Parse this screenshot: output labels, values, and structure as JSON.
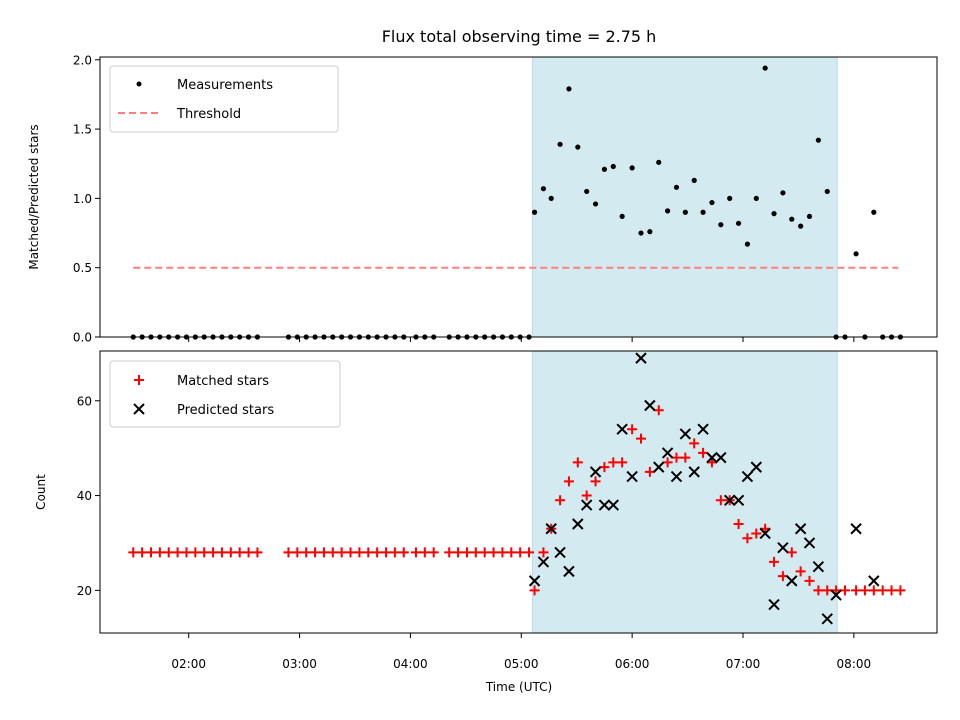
{
  "chart_data": {
    "type": "scatter",
    "title": "Flux total observing time = 2.75 h",
    "xlabel": "Time (UTC)",
    "xlim": [
      1.2,
      8.75
    ],
    "xticks": [
      {
        "value": 2,
        "label": "02:00"
      },
      {
        "value": 3,
        "label": "03:00"
      },
      {
        "value": 4,
        "label": "04:00"
      },
      {
        "value": 5,
        "label": "05:00"
      },
      {
        "value": 6,
        "label": "06:00"
      },
      {
        "value": 7,
        "label": "07:00"
      },
      {
        "value": 8,
        "label": "08:00"
      }
    ],
    "shaded_span": {
      "x0": 5.1,
      "x1": 7.85,
      "color": "#d2eaf0"
    },
    "colors": {
      "measure": "#000000",
      "threshold": "#ff7f7f",
      "matched": "#ff0000",
      "predicted": "#000000",
      "span": "#d2eaf0"
    },
    "top": {
      "ylabel": "Matched/Predicted stars",
      "ylim": [
        0,
        2.02
      ],
      "yticks": [
        "0.0",
        "0.5",
        "1.0",
        "1.5",
        "2.0"
      ],
      "legend": {
        "position": "upper-left",
        "entries": [
          "Measurements",
          "Threshold"
        ]
      },
      "threshold": {
        "x": [
          1.5,
          8.4
        ],
        "y": 0.5
      },
      "measurements": {
        "x": [
          1.5,
          1.58,
          1.66,
          1.74,
          1.82,
          1.9,
          1.98,
          2.06,
          2.14,
          2.22,
          2.3,
          2.38,
          2.46,
          2.54,
          2.62,
          2.9,
          2.98,
          3.06,
          3.14,
          3.22,
          3.3,
          3.38,
          3.46,
          3.54,
          3.62,
          3.7,
          3.78,
          3.86,
          3.94,
          4.05,
          4.13,
          4.21,
          4.35,
          4.43,
          4.51,
          4.59,
          4.67,
          4.75,
          4.83,
          4.91,
          4.99,
          5.07,
          5.12,
          5.2,
          5.27,
          5.35,
          5.43,
          5.51,
          5.59,
          5.67,
          5.75,
          5.83,
          5.91,
          6.0,
          6.08,
          6.16,
          6.24,
          6.32,
          6.4,
          6.48,
          6.56,
          6.64,
          6.72,
          6.8,
          6.88,
          6.96,
          7.04,
          7.12,
          7.2,
          7.28,
          7.36,
          7.44,
          7.52,
          7.6,
          7.68,
          7.76,
          7.84,
          7.92,
          8.02,
          8.1,
          8.18,
          8.26,
          8.34,
          8.42
        ],
        "y": [
          0,
          0,
          0,
          0,
          0,
          0,
          0,
          0,
          0,
          0,
          0,
          0,
          0,
          0,
          0,
          0,
          0,
          0,
          0,
          0,
          0,
          0,
          0,
          0,
          0,
          0,
          0,
          0,
          0,
          0,
          0,
          0,
          0,
          0,
          0,
          0,
          0,
          0,
          0,
          0,
          0,
          0,
          0.9,
          1.07,
          1.0,
          1.39,
          1.79,
          1.37,
          1.05,
          0.96,
          1.21,
          1.23,
          0.87,
          1.22,
          0.75,
          0.76,
          1.26,
          0.91,
          1.08,
          0.9,
          1.13,
          0.9,
          0.97,
          0.81,
          1.0,
          0.82,
          0.67,
          1.0,
          1.94,
          0.89,
          1.04,
          0.85,
          0.8,
          0.87,
          1.42,
          1.05,
          0,
          0,
          0.6,
          0,
          0.9,
          0,
          0,
          0
        ]
      }
    },
    "bottom": {
      "ylabel": "Count",
      "ylim": [
        11,
        70.5
      ],
      "yticks": [
        "20",
        "40",
        "60"
      ],
      "ytick_values": [
        20,
        40,
        60
      ],
      "legend": {
        "position": "upper-left",
        "entries": [
          "Matched stars",
          "Predicted stars"
        ]
      },
      "matched": {
        "x": [
          1.5,
          1.58,
          1.66,
          1.74,
          1.82,
          1.9,
          1.98,
          2.06,
          2.14,
          2.22,
          2.3,
          2.38,
          2.46,
          2.54,
          2.62,
          2.9,
          2.98,
          3.06,
          3.14,
          3.22,
          3.3,
          3.38,
          3.46,
          3.54,
          3.62,
          3.7,
          3.78,
          3.86,
          3.94,
          4.05,
          4.13,
          4.21,
          4.35,
          4.43,
          4.51,
          4.59,
          4.67,
          4.75,
          4.83,
          4.91,
          4.99,
          5.07,
          5.12,
          5.2,
          5.27,
          5.35,
          5.43,
          5.51,
          5.59,
          5.67,
          5.75,
          5.83,
          5.91,
          6.0,
          6.08,
          6.16,
          6.24,
          6.32,
          6.4,
          6.48,
          6.56,
          6.64,
          6.72,
          6.8,
          6.88,
          6.96,
          7.04,
          7.12,
          7.2,
          7.28,
          7.36,
          7.44,
          7.52,
          7.6,
          7.68,
          7.76,
          7.84,
          7.92,
          8.02,
          8.1,
          8.18,
          8.26,
          8.34,
          8.42
        ],
        "y": [
          28,
          28,
          28,
          28,
          28,
          28,
          28,
          28,
          28,
          28,
          28,
          28,
          28,
          28,
          28,
          28,
          28,
          28,
          28,
          28,
          28,
          28,
          28,
          28,
          28,
          28,
          28,
          28,
          28,
          28,
          28,
          28,
          28,
          28,
          28,
          28,
          28,
          28,
          28,
          28,
          28,
          28,
          20,
          28,
          33,
          39,
          43,
          47,
          40,
          43,
          46,
          47,
          47,
          54,
          52,
          45,
          58,
          47,
          48,
          48,
          51,
          49,
          47,
          39,
          39,
          34,
          31,
          32,
          33,
          26,
          23,
          28,
          24,
          22,
          20,
          20,
          20,
          20,
          20,
          20,
          20,
          20,
          20,
          20
        ]
      },
      "predicted": {
        "x": [
          5.12,
          5.2,
          5.27,
          5.35,
          5.43,
          5.51,
          5.59,
          5.67,
          5.75,
          5.83,
          5.91,
          6.0,
          6.08,
          6.16,
          6.24,
          6.32,
          6.4,
          6.48,
          6.56,
          6.64,
          6.72,
          6.8,
          6.88,
          6.96,
          7.04,
          7.12,
          7.2,
          7.28,
          7.36,
          7.44,
          7.52,
          7.6,
          7.68,
          7.76,
          7.84,
          8.02,
          8.18
        ],
        "y": [
          22,
          26,
          33,
          28,
          24,
          34,
          38,
          45,
          38,
          38,
          54,
          44,
          69,
          59,
          46,
          49,
          44,
          53,
          45,
          54,
          48,
          48,
          39,
          39,
          44,
          46,
          32,
          17,
          29,
          22,
          33,
          30,
          25,
          14,
          19,
          33,
          22
        ]
      }
    }
  }
}
